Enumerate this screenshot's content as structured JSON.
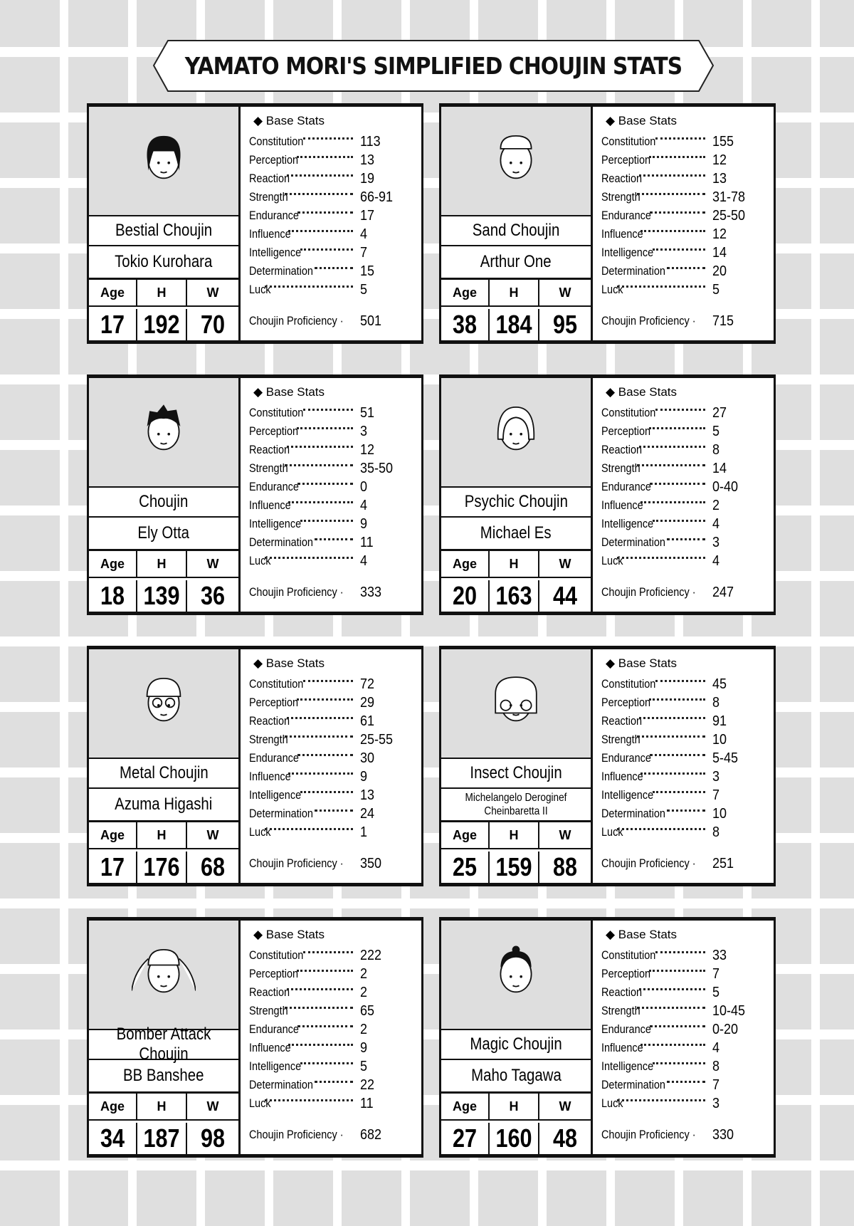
{
  "title": "YAMATO MORI'S SIMPLIFIED CHOUJIN STATS",
  "labels": {
    "base_stats": "◆ Base Stats",
    "age": "Age",
    "height": "H",
    "weight": "W",
    "proficiency": "Choujin Proficiency ·",
    "stats": [
      "Constitution",
      "Perception",
      "Reaction",
      "Strength",
      "Endurance",
      "Influence",
      "Intelligence",
      "Determination",
      "Luck"
    ]
  },
  "cards": [
    {
      "class": "Bestial Choujin",
      "name": "Tokio Kurohara",
      "age": "17",
      "h": "192",
      "w": "70",
      "stats": [
        "113",
        "13",
        "19",
        "66-91",
        "17",
        "4",
        "7",
        "15",
        "5"
      ],
      "proficiency": "501",
      "portrait": "long-hair-face"
    },
    {
      "class": "Sand Choujin",
      "name": "Arthur One",
      "age": "38",
      "h": "184",
      "w": "95",
      "stats": [
        "155",
        "12",
        "13",
        "31-78",
        "25-50",
        "12",
        "14",
        "20",
        "5"
      ],
      "proficiency": "715",
      "portrait": "bald-face"
    },
    {
      "class": "Choujin",
      "name": "Ely Otta",
      "age": "18",
      "h": "139",
      "w": "36",
      "stats": [
        "51",
        "3",
        "12",
        "35-50",
        "0",
        "4",
        "9",
        "11",
        "4"
      ],
      "proficiency": "333",
      "portrait": "spiky-hair-face"
    },
    {
      "class": "Psychic Choujin",
      "name": "Michael Es",
      "age": "20",
      "h": "163",
      "w": "44",
      "stats": [
        "27",
        "5",
        "8",
        "14",
        "0-40",
        "2",
        "4",
        "3",
        "4"
      ],
      "proficiency": "247",
      "portrait": "bob-hair-face"
    },
    {
      "class": "Metal Choujin",
      "name": "Azuma Higashi",
      "age": "17",
      "h": "176",
      "w": "68",
      "stats": [
        "72",
        "29",
        "61",
        "25-55",
        "30",
        "9",
        "13",
        "24",
        "1"
      ],
      "proficiency": "350",
      "portrait": "glasses-face"
    },
    {
      "class": "Insect Choujin",
      "name": "Michelangelo Deroginef Cheinbaretta II",
      "age": "25",
      "h": "159",
      "w": "88",
      "stats": [
        "45",
        "8",
        "91",
        "10",
        "5-45",
        "3",
        "7",
        "10",
        "8"
      ],
      "proficiency": "251",
      "portrait": "helmet-face"
    },
    {
      "class": "Bomber Attack Choujin",
      "name": "BB Banshee",
      "age": "34",
      "h": "187",
      "w": "98",
      "stats": [
        "222",
        "2",
        "2",
        "65",
        "2",
        "9",
        "5",
        "22",
        "11"
      ],
      "proficiency": "682",
      "portrait": "twintail-face"
    },
    {
      "class": "Magic Choujin",
      "name": "Maho Tagawa",
      "age": "27",
      "h": "160",
      "w": "48",
      "stats": [
        "33",
        "7",
        "5",
        "10-45",
        "0-20",
        "4",
        "8",
        "7",
        "3"
      ],
      "proficiency": "330",
      "portrait": "bun-hair-face"
    }
  ]
}
